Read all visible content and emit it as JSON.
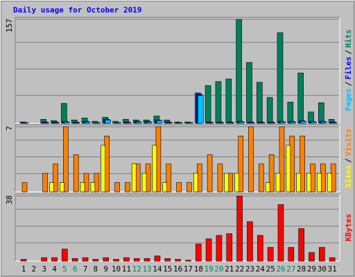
{
  "chart_data": [
    {
      "type": "bar",
      "title": "Daily usage for October 2019",
      "title_color": "#0000ff",
      "ylim": [
        0,
        157
      ],
      "yticks": [
        157
      ],
      "legend_separator": "/",
      "series": [
        {
          "name": "Hits",
          "color": "#00805c",
          "values": [
            2,
            0,
            6,
            4,
            30,
            5,
            8,
            3,
            9,
            3,
            6,
            5,
            5,
            11,
            5,
            2,
            2,
            46,
            57,
            63,
            67,
            157,
            92,
            62,
            39,
            137,
            32,
            76,
            17,
            31,
            6
          ]
        },
        {
          "name": "Files",
          "color": "#0000ff",
          "values": [
            1,
            0,
            2,
            2,
            3,
            2,
            3,
            1,
            6,
            1,
            2,
            3,
            3,
            5,
            2,
            1,
            1,
            44,
            2,
            2,
            2,
            3,
            2,
            2,
            2,
            3,
            3,
            4,
            3,
            3,
            2
          ]
        },
        {
          "name": "Pages",
          "color": "#00c0ff",
          "values": [
            1,
            0,
            1,
            1,
            2,
            1,
            2,
            1,
            5,
            1,
            1,
            2,
            2,
            4,
            1,
            1,
            1,
            42,
            1,
            1,
            1,
            2,
            1,
            1,
            1,
            2,
            2,
            3,
            2,
            2,
            1
          ]
        }
      ]
    },
    {
      "type": "bar",
      "ylim": [
        0,
        7
      ],
      "yticks": [
        7
      ],
      "legend_separator": "/",
      "series": [
        {
          "name": "Visits",
          "color": "#ff8000",
          "values": [
            1,
            0,
            2,
            3,
            7,
            4,
            2,
            2,
            6,
            1,
            1,
            3,
            3,
            7,
            3,
            1,
            1,
            3,
            4,
            3,
            2,
            6,
            7,
            3,
            4,
            7,
            6,
            6,
            3,
            3,
            3
          ]
        },
        {
          "name": "Sites",
          "color": "#ffff00",
          "values": [
            0,
            0,
            0,
            1,
            1,
            0,
            1,
            1,
            5,
            0,
            0,
            3,
            2,
            5,
            1,
            0,
            0,
            2,
            0,
            0,
            2,
            2,
            0,
            0,
            1,
            2,
            5,
            2,
            2,
            2,
            2
          ]
        }
      ]
    },
    {
      "type": "bar",
      "ylim": [
        0,
        38
      ],
      "yticks": [
        38
      ],
      "categories": [
        "1",
        "2",
        "3",
        "4",
        "5",
        "6",
        "7",
        "8",
        "9",
        "10",
        "11",
        "12",
        "13",
        "14",
        "15",
        "16",
        "17",
        "18",
        "19",
        "20",
        "21",
        "22",
        "23",
        "24",
        "25",
        "26",
        "27",
        "28",
        "29",
        "30",
        "31"
      ],
      "category_colors": [
        "#000000",
        "#000000",
        "#000000",
        "#000000",
        "#00805c",
        "#00805c",
        "#000000",
        "#000000",
        "#000000",
        "#000000",
        "#000000",
        "#00805c",
        "#00805c",
        "#000000",
        "#000000",
        "#000000",
        "#000000",
        "#000000",
        "#00805c",
        "#00805c",
        "#000000",
        "#000000",
        "#000000",
        "#000000",
        "#000000",
        "#00805c",
        "#00805c",
        "#000000",
        "#000000",
        "#000000",
        "#000000"
      ],
      "series": [
        {
          "name": "KBytes",
          "color": "#ff0000",
          "values": [
            1,
            0,
            2,
            2,
            7,
            1.5,
            2,
            1,
            2,
            1,
            2,
            1.5,
            1.5,
            3,
            1.5,
            1,
            0.5,
            10,
            13,
            15,
            16,
            38,
            23,
            15,
            8,
            33,
            8,
            19,
            5,
            8,
            2
          ]
        }
      ]
    }
  ]
}
